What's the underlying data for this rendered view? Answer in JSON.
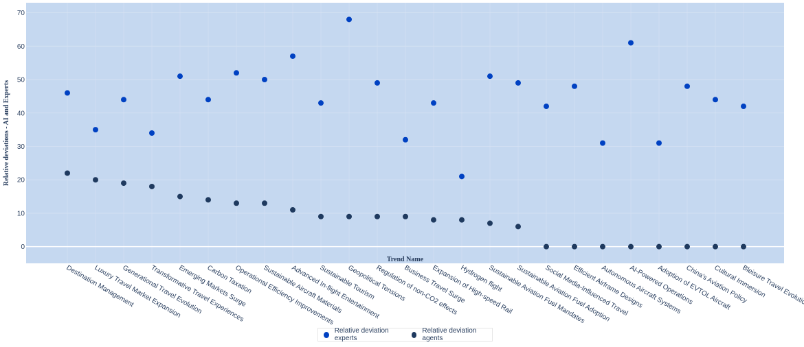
{
  "chart_data": {
    "type": "scatter",
    "categories": [
      "Destination Management",
      "Luxury Travel Market Expansion",
      "Generational Travel Evolution",
      "Transformative Travel Experiences",
      "Emerging Markets Surge",
      "Carbon Taxation",
      "Operational Efficiency Improvements",
      "Sustainable Aircraft Materials",
      "Advanced In-flight Entertainment",
      "Sustainable Tourism",
      "Geopolitical Tensions",
      "Regulation of non-CO2 effects",
      "Business Travel Surge",
      "Expansion of High-speed Rail",
      "Hydrogen flight",
      "Sustainable Aviation Fuel Mandates",
      "Sustainable Aviation Fuel Adoption",
      "Social Media-Influenced Travel",
      "Efficient Airframe Designs",
      "Autonomous Aircraft Systems",
      "AI-Powered Operations",
      "Adoption of EVTOL Aircraft",
      "China's Aviation Policy",
      "Cultural Immersion",
      "Bleisure Travel Evolution"
    ],
    "series": [
      {
        "name": "Relative deviation experts",
        "color": "#0041c2",
        "values": [
          46,
          35,
          44,
          34,
          51,
          44,
          52,
          50,
          57,
          43,
          68,
          49,
          32,
          43,
          21,
          51,
          49,
          42,
          48,
          31,
          61,
          31,
          48,
          44,
          42
        ]
      },
      {
        "name": "Relative deviation agents",
        "color": "#1f3a5f",
        "values": [
          22,
          20,
          19,
          18,
          15,
          14,
          13,
          13,
          11,
          9,
          9,
          9,
          9,
          8,
          8,
          7,
          6,
          0,
          0,
          0,
          0,
          0,
          0,
          0,
          0
        ]
      }
    ],
    "xlabel": "Trend Name",
    "ylabel": "Relative deviations - AI and Experts",
    "ylim": [
      -5,
      73
    ],
    "yticks": [
      0,
      10,
      20,
      30,
      40,
      50,
      60,
      70
    ],
    "grid": true,
    "legend_position": "bottom-center",
    "plot_bg": "#c5d8f0"
  }
}
